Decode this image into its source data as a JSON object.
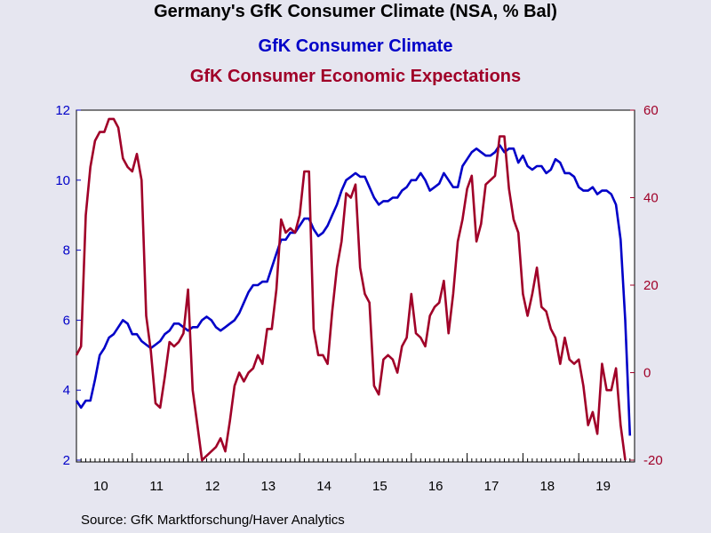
{
  "title": "Germany's GfK Consumer Climate (NSA, % Bal)",
  "source": "Source:  GfK Marktforschung/Haver Analytics",
  "colors": {
    "background": "#e6e6f0",
    "plot_background": "#ffffff",
    "climate": "#0000c8",
    "expectations": "#a00028"
  },
  "chart_data": {
    "type": "line",
    "x_labels": [
      "10",
      "11",
      "12",
      "13",
      "14",
      "15",
      "16",
      "17",
      "18",
      "19"
    ],
    "x_range": [
      2010.0,
      2020.0
    ],
    "grid": false,
    "legend_placement": "top-center",
    "left_axis": {
      "ticks": [
        2,
        4,
        6,
        8,
        10,
        12
      ],
      "range": [
        2,
        12
      ]
    },
    "right_axis": {
      "ticks": [
        -20,
        0,
        20,
        40,
        60
      ],
      "range": [
        -20,
        60
      ]
    },
    "series": [
      {
        "name": "GfK Consumer Climate",
        "axis": "left",
        "x": [
          2010.0,
          2010.083,
          2010.167,
          2010.25,
          2010.333,
          2010.417,
          2010.5,
          2010.583,
          2010.667,
          2010.75,
          2010.833,
          2010.917,
          2011.0,
          2011.083,
          2011.167,
          2011.25,
          2011.333,
          2011.417,
          2011.5,
          2011.583,
          2011.667,
          2011.75,
          2011.833,
          2011.917,
          2012.0,
          2012.083,
          2012.167,
          2012.25,
          2012.333,
          2012.417,
          2012.5,
          2012.583,
          2012.667,
          2012.75,
          2012.833,
          2012.917,
          2013.0,
          2013.083,
          2013.167,
          2013.25,
          2013.333,
          2013.417,
          2013.5,
          2013.583,
          2013.667,
          2013.75,
          2013.833,
          2013.917,
          2014.0,
          2014.083,
          2014.167,
          2014.25,
          2014.333,
          2014.417,
          2014.5,
          2014.583,
          2014.667,
          2014.75,
          2014.833,
          2014.917,
          2015.0,
          2015.083,
          2015.167,
          2015.25,
          2015.333,
          2015.417,
          2015.5,
          2015.583,
          2015.667,
          2015.75,
          2015.833,
          2015.917,
          2016.0,
          2016.083,
          2016.167,
          2016.25,
          2016.333,
          2016.417,
          2016.5,
          2016.583,
          2016.667,
          2016.75,
          2016.833,
          2016.917,
          2017.0,
          2017.083,
          2017.167,
          2017.25,
          2017.333,
          2017.417,
          2017.5,
          2017.583,
          2017.667,
          2017.75,
          2017.833,
          2017.917,
          2018.0,
          2018.083,
          2018.167,
          2018.25,
          2018.333,
          2018.417,
          2018.5,
          2018.583,
          2018.667,
          2018.75,
          2018.833,
          2018.917,
          2019.0,
          2019.083,
          2019.167,
          2019.25,
          2019.333,
          2019.417,
          2019.5,
          2019.583,
          2019.667,
          2019.75,
          2019.833,
          2019.917
        ],
        "y": [
          3.7,
          3.5,
          3.7,
          3.7,
          4.3,
          5.0,
          5.2,
          5.5,
          5.6,
          5.8,
          6.0,
          5.9,
          5.6,
          5.6,
          5.4,
          5.3,
          5.2,
          5.3,
          5.4,
          5.6,
          5.7,
          5.9,
          5.9,
          5.8,
          5.7,
          5.8,
          5.8,
          6.0,
          6.1,
          6.0,
          5.8,
          5.7,
          5.8,
          5.9,
          6.0,
          6.2,
          6.5,
          6.8,
          7.0,
          7.0,
          7.1,
          7.1,
          7.5,
          7.9,
          8.3,
          8.3,
          8.5,
          8.5,
          8.7,
          8.9,
          8.9,
          8.6,
          8.4,
          8.5,
          8.7,
          9.0,
          9.3,
          9.7,
          10.0,
          10.1,
          10.2,
          10.1,
          10.1,
          9.8,
          9.5,
          9.3,
          9.4,
          9.4,
          9.5,
          9.5,
          9.7,
          9.8,
          10.0,
          10.0,
          10.2,
          10.0,
          9.7,
          9.8,
          9.9,
          10.2,
          10.0,
          9.8,
          9.8,
          10.4,
          10.6,
          10.8,
          10.9,
          10.8,
          10.7,
          10.7,
          10.8,
          11.0,
          10.8,
          10.9,
          10.9,
          10.5,
          10.7,
          10.4,
          10.3,
          10.4,
          10.4,
          10.2,
          10.3,
          10.6,
          10.5,
          10.2,
          10.2,
          10.1,
          9.8,
          9.7,
          9.7,
          9.8,
          9.6,
          9.7,
          9.7,
          9.6,
          9.3,
          8.3,
          6.0,
          2.7
        ]
      },
      {
        "name": "GfK Consumer Economic Expectations",
        "axis": "right",
        "x": [
          2010.0,
          2010.083,
          2010.167,
          2010.25,
          2010.333,
          2010.417,
          2010.5,
          2010.583,
          2010.667,
          2010.75,
          2010.833,
          2010.917,
          2011.0,
          2011.083,
          2011.167,
          2011.25,
          2011.333,
          2011.417,
          2011.5,
          2011.583,
          2011.667,
          2011.75,
          2011.833,
          2011.917,
          2012.0,
          2012.083,
          2012.167,
          2012.25,
          2012.333,
          2012.417,
          2012.5,
          2012.583,
          2012.667,
          2012.75,
          2012.833,
          2012.917,
          2013.0,
          2013.083,
          2013.167,
          2013.25,
          2013.333,
          2013.417,
          2013.5,
          2013.583,
          2013.667,
          2013.75,
          2013.833,
          2013.917,
          2014.0,
          2014.083,
          2014.167,
          2014.25,
          2014.333,
          2014.417,
          2014.5,
          2014.583,
          2014.667,
          2014.75,
          2014.833,
          2014.917,
          2015.0,
          2015.083,
          2015.167,
          2015.25,
          2015.333,
          2015.417,
          2015.5,
          2015.583,
          2015.667,
          2015.75,
          2015.833,
          2015.917,
          2016.0,
          2016.083,
          2016.167,
          2016.25,
          2016.333,
          2016.417,
          2016.5,
          2016.583,
          2016.667,
          2016.75,
          2016.833,
          2016.917,
          2017.0,
          2017.083,
          2017.167,
          2017.25,
          2017.333,
          2017.417,
          2017.5,
          2017.583,
          2017.667,
          2017.75,
          2017.833,
          2017.917,
          2018.0,
          2018.083,
          2018.167,
          2018.25,
          2018.333,
          2018.417,
          2018.5,
          2018.583,
          2018.667,
          2018.75,
          2018.833,
          2018.917,
          2019.0,
          2019.083,
          2019.167,
          2019.25,
          2019.333,
          2019.417,
          2019.5,
          2019.583,
          2019.667,
          2019.75,
          2019.833
        ],
        "y": [
          4,
          6,
          36,
          47,
          53,
          55,
          55,
          58,
          58,
          56,
          49,
          47,
          46,
          50,
          44,
          13,
          5,
          -7,
          -8,
          -1,
          7,
          6,
          7,
          9,
          19,
          -4,
          -12,
          -20,
          -19,
          -18,
          -17,
          -15,
          -18,
          -11,
          -3,
          0,
          -2,
          0,
          1,
          4,
          2,
          10,
          10,
          19,
          35,
          32,
          33,
          32,
          36,
          46,
          46,
          10,
          4,
          4,
          2,
          14,
          24,
          30,
          41,
          40,
          43,
          24,
          18,
          16,
          -3,
          -5,
          3,
          4,
          3,
          0,
          6,
          8,
          18,
          9,
          8,
          6,
          13,
          15,
          16,
          21,
          9,
          18,
          30,
          35,
          42,
          45,
          30,
          34,
          43,
          44,
          45,
          54,
          54,
          42,
          35,
          32,
          18,
          13,
          18,
          24,
          15,
          14,
          10,
          8,
          2,
          8,
          3,
          2,
          3,
          -3,
          -12,
          -9,
          -14,
          2,
          -4,
          -4,
          1,
          -12,
          -20
        ]
      }
    ]
  }
}
